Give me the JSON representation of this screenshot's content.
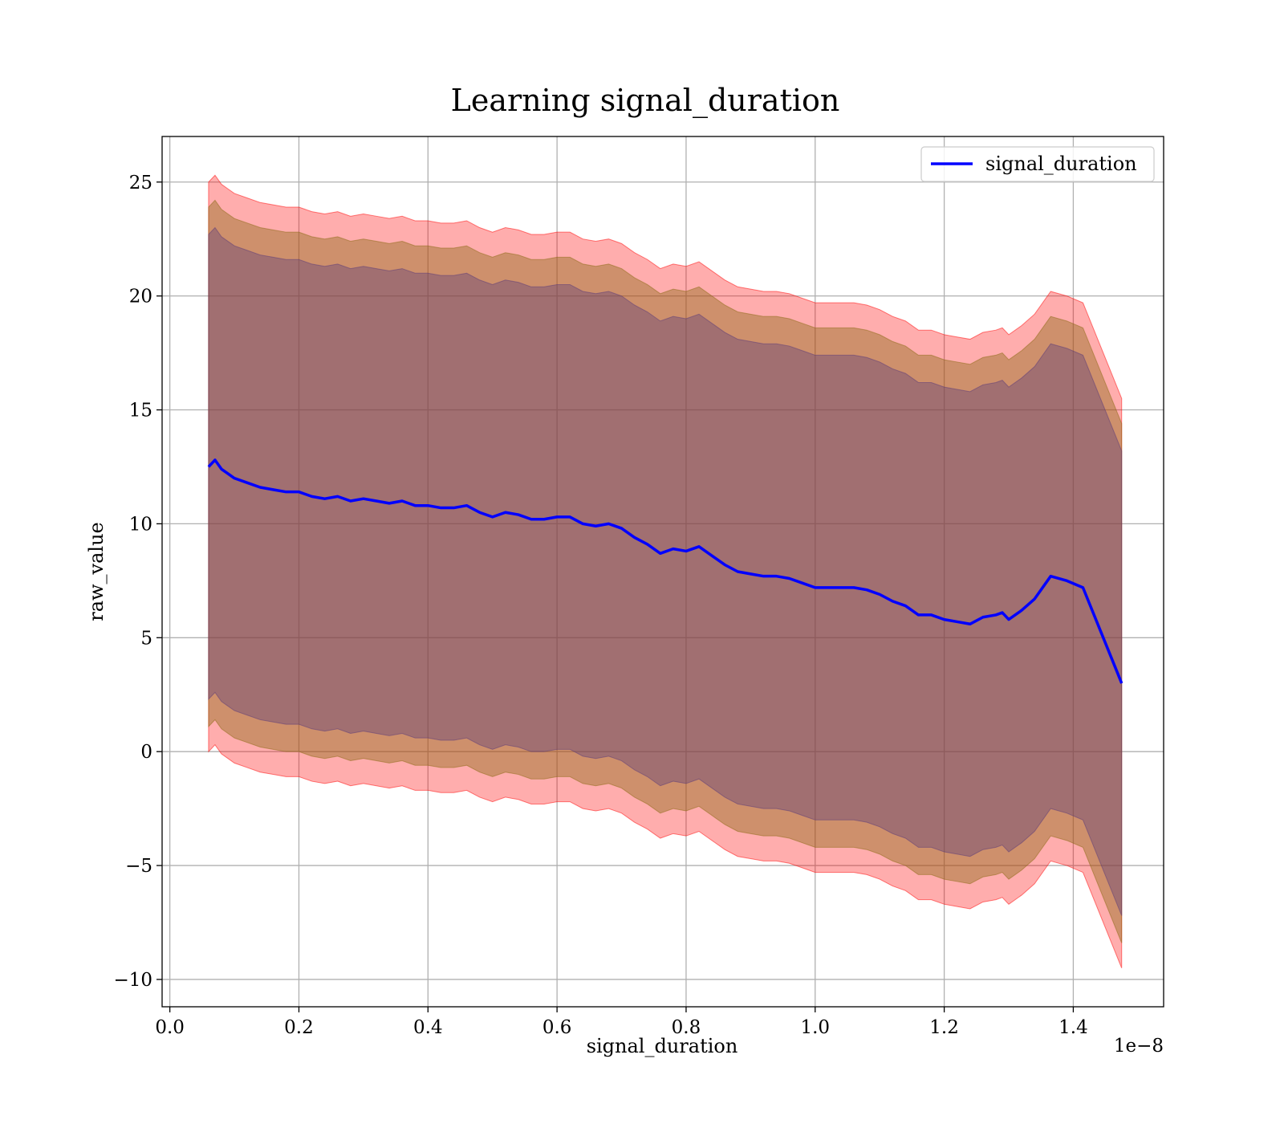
{
  "chart_data": {
    "type": "area",
    "title": "Learning signal_duration",
    "xlabel": "signal_duration",
    "ylabel": "raw_value",
    "x_offset_label": "1e−8",
    "xlim": [
      -0.012,
      1.54
    ],
    "ylim": [
      -11.2,
      27.0
    ],
    "x_ticks": [
      {
        "value": 0.0,
        "label": "0.0"
      },
      {
        "value": 0.2,
        "label": "0.2"
      },
      {
        "value": 0.4,
        "label": "0.4"
      },
      {
        "value": 0.6,
        "label": "0.6"
      },
      {
        "value": 0.8,
        "label": "0.8"
      },
      {
        "value": 1.0,
        "label": "1.0"
      },
      {
        "value": 1.2,
        "label": "1.2"
      },
      {
        "value": 1.4,
        "label": "1.4"
      }
    ],
    "y_ticks": [
      {
        "value": -10,
        "label": "−10"
      },
      {
        "value": -5,
        "label": "−5"
      },
      {
        "value": 0,
        "label": "0"
      },
      {
        "value": 5,
        "label": "5"
      },
      {
        "value": 10,
        "label": "10"
      },
      {
        "value": 15,
        "label": "15"
      },
      {
        "value": 20,
        "label": "20"
      },
      {
        "value": 25,
        "label": "25"
      }
    ],
    "grid": true,
    "legend_position": "top-right",
    "series": [
      {
        "name": "signal_duration",
        "color": "#0000ff",
        "x": [
          0.06,
          0.07,
          0.08,
          0.09,
          0.1,
          0.12,
          0.14,
          0.16,
          0.18,
          0.2,
          0.22,
          0.24,
          0.26,
          0.28,
          0.3,
          0.32,
          0.34,
          0.36,
          0.38,
          0.4,
          0.42,
          0.44,
          0.46,
          0.48,
          0.5,
          0.52,
          0.54,
          0.56,
          0.58,
          0.6,
          0.62,
          0.64,
          0.66,
          0.68,
          0.7,
          0.72,
          0.74,
          0.76,
          0.78,
          0.8,
          0.82,
          0.84,
          0.86,
          0.88,
          0.9,
          0.92,
          0.94,
          0.96,
          0.98,
          1.0,
          1.02,
          1.04,
          1.06,
          1.08,
          1.1,
          1.12,
          1.14,
          1.16,
          1.18,
          1.2,
          1.22,
          1.24,
          1.26,
          1.28,
          1.29,
          1.3,
          1.32,
          1.34,
          1.365,
          1.39,
          1.415,
          1.445,
          1.475
        ],
        "y": [
          12.5,
          12.8,
          12.4,
          12.2,
          12.0,
          11.8,
          11.6,
          11.5,
          11.4,
          11.4,
          11.2,
          11.1,
          11.2,
          11.0,
          11.1,
          11.0,
          10.9,
          11.0,
          10.8,
          10.8,
          10.7,
          10.7,
          10.8,
          10.5,
          10.3,
          10.5,
          10.4,
          10.2,
          10.2,
          10.3,
          10.3,
          10.0,
          9.9,
          10.0,
          9.8,
          9.4,
          9.1,
          8.7,
          8.9,
          8.8,
          9.0,
          8.6,
          8.2,
          7.9,
          7.8,
          7.7,
          7.7,
          7.6,
          7.4,
          7.2,
          7.2,
          7.2,
          7.2,
          7.1,
          6.9,
          6.6,
          6.4,
          6.0,
          6.0,
          5.8,
          5.7,
          5.6,
          5.9,
          6.0,
          6.1,
          5.8,
          6.2,
          6.7,
          7.7,
          7.5,
          7.2,
          5.1,
          3.0
        ]
      }
    ],
    "bands": [
      {
        "color": "#ff0000",
        "opacity": 0.32,
        "offset": 12.5
      },
      {
        "color": "#8b6914",
        "opacity": 0.42,
        "offset": 11.4
      },
      {
        "color": "#5a3a7a",
        "opacity": 0.38,
        "offset": 10.2
      }
    ]
  }
}
